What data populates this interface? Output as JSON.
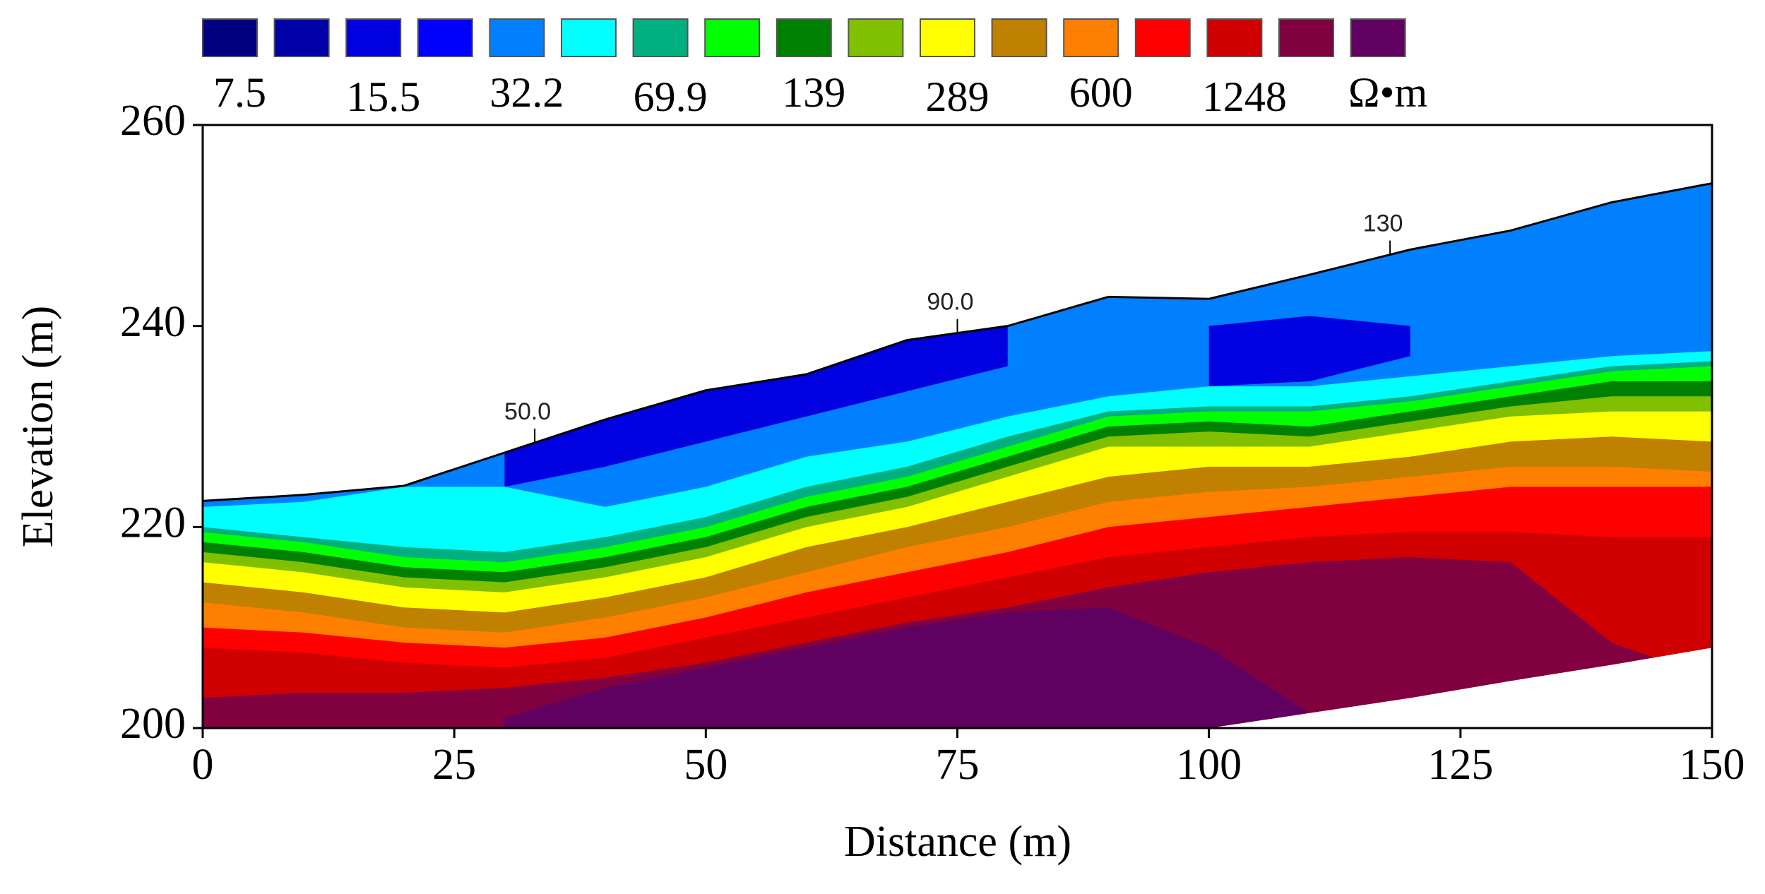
{
  "chart_data": {
    "type": "contour",
    "x_label": "Distance (m)",
    "y_label": "Elevation (m)",
    "xlim": [
      0,
      150
    ],
    "xticks": [
      0,
      25,
      50,
      75,
      100,
      125,
      150
    ],
    "ylim": [
      200,
      260
    ],
    "yticks": [
      200,
      220,
      240,
      260
    ],
    "x": [
      0,
      10,
      20,
      30,
      40,
      50,
      60,
      70,
      80,
      90,
      100,
      110,
      120,
      130,
      140,
      150
    ],
    "surface": [
      222.6,
      223.2,
      224.1,
      227.4,
      230.7,
      233.6,
      235.2,
      238.6,
      240,
      242.9,
      242.7,
      245.1,
      247.6,
      249.5,
      252.3,
      254.2
    ],
    "bottom": [
      200,
      200,
      200,
      200,
      200,
      200,
      200,
      200,
      200,
      200,
      200,
      201.5,
      203,
      204.7,
      206.3,
      208
    ],
    "layers": [
      {
        "color": "#0080ff",
        "top": [
          222.6,
          223.2,
          224.1,
          227.4,
          230.7,
          233.6,
          235.2,
          238.6,
          240,
          242.9,
          242.7,
          245.1,
          247.6,
          249.5,
          252.3,
          254.2
        ]
      },
      {
        "color": "#0000e0",
        "top": [
          null,
          null,
          null,
          227.4,
          230.7,
          233.6,
          235.2,
          238.6,
          240,
          null,
          null,
          null,
          null,
          null,
          null,
          null
        ],
        "bottom": [
          null,
          null,
          null,
          224,
          226,
          228.5,
          231,
          233.5,
          236,
          null,
          null,
          null,
          null,
          null,
          null,
          null
        ]
      },
      {
        "color": "#0000e0",
        "top": [
          null,
          null,
          null,
          null,
          null,
          null,
          null,
          null,
          null,
          null,
          240,
          241,
          240,
          null,
          null,
          null
        ],
        "bottom": [
          null,
          null,
          null,
          null,
          null,
          null,
          null,
          null,
          null,
          null,
          234,
          234.5,
          237,
          null,
          null,
          null
        ]
      },
      {
        "color": "#00ffff",
        "top": [
          222,
          222.5,
          224,
          224,
          222,
          224,
          227,
          228.5,
          231,
          233,
          234,
          234,
          235,
          236,
          237,
          237.5
        ]
      },
      {
        "color": "#00b080",
        "top": [
          220,
          219,
          218,
          217.5,
          219,
          221,
          224,
          226,
          229,
          231.5,
          232,
          232,
          233,
          234.5,
          236,
          236.5
        ]
      },
      {
        "color": "#00ff00",
        "top": [
          219.5,
          218.5,
          217,
          216.5,
          218,
          220,
          223,
          225,
          228,
          231,
          231.5,
          231.5,
          232.5,
          234,
          235.5,
          236
        ]
      },
      {
        "color": "#008000",
        "top": [
          218.5,
          217.5,
          216,
          215.5,
          217,
          219,
          222,
          224,
          227,
          230,
          230.5,
          230,
          231.5,
          233,
          234.5,
          234.5
        ]
      },
      {
        "color": "#80c000",
        "top": [
          217.5,
          216.5,
          215,
          214.5,
          216,
          218,
          221,
          223,
          226,
          229,
          229.5,
          229,
          230.5,
          232,
          233,
          233
        ]
      },
      {
        "color": "#ffff00",
        "top": [
          216.5,
          215.5,
          214,
          213.5,
          215,
          217,
          220,
          222,
          225,
          228,
          228,
          228,
          229.5,
          231,
          231.5,
          231.5
        ]
      },
      {
        "color": "#c08000",
        "top": [
          214.5,
          213.5,
          212,
          211.5,
          213,
          215,
          218,
          220,
          222.5,
          225,
          226,
          226,
          227,
          228.5,
          229,
          228.5
        ]
      },
      {
        "color": "#ff8000",
        "top": [
          212.5,
          211.5,
          210,
          209.5,
          211,
          213,
          215.5,
          218,
          220,
          222.5,
          223.5,
          224,
          225,
          226,
          226,
          225.5
        ]
      },
      {
        "color": "#ff0000",
        "top": [
          210,
          209.5,
          208.5,
          208,
          209,
          211,
          213.5,
          215.5,
          217.5,
          220,
          221,
          222,
          223,
          224,
          224,
          224
        ]
      },
      {
        "color": "#d00000",
        "top": [
          208,
          207.5,
          206.5,
          206,
          207,
          209,
          211,
          213,
          215,
          217,
          218,
          219,
          219.5,
          219.5,
          219,
          219
        ]
      },
      {
        "color": "#800040",
        "top": [
          203,
          203.5,
          203.5,
          204,
          205,
          206.5,
          208.5,
          210.5,
          212,
          214,
          215.5,
          216.5,
          217,
          216.5,
          208.5,
          205
        ]
      },
      {
        "color": "#600060",
        "top": [
          null,
          null,
          null,
          201,
          204,
          206,
          208,
          210,
          211.5,
          212,
          208,
          201.5,
          null,
          null,
          null,
          null
        ]
      }
    ],
    "legend": {
      "colors": [
        "#000080",
        "#0000a8",
        "#0000e0",
        "#0000ff",
        "#0080ff",
        "#00ffff",
        "#00b080",
        "#00ff00",
        "#008000",
        "#80c000",
        "#ffff00",
        "#c08000",
        "#ff8000",
        "#ff0000",
        "#d00000",
        "#800040",
        "#600060"
      ],
      "labels": [
        7.5,
        null,
        15.5,
        null,
        32.2,
        null,
        69.9,
        null,
        139,
        null,
        289,
        null,
        600,
        null,
        1248,
        null,
        "Ω•m"
      ]
    },
    "annotations": [
      "50.0",
      "90.0",
      "130"
    ]
  }
}
